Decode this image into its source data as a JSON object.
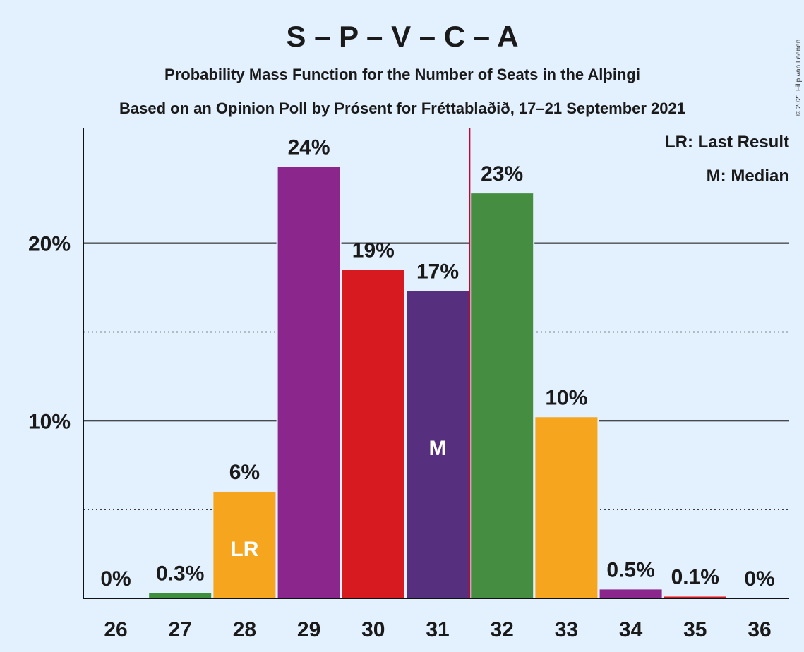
{
  "title": "S – P – V – C – A",
  "subtitle1": "Probability Mass Function for the Number of Seats in the Alþingi",
  "subtitle2": "Based on an Opinion Poll by Prósent for Fréttablaðið, 17–21 September 2021",
  "copyright": "© 2021 Filip van Laenen",
  "legend": {
    "lr": "LR: Last Result",
    "median": "M: Median"
  },
  "colors": {
    "background": "#e3f0fd",
    "last_result_line": "#cc0033"
  },
  "chart_data": {
    "type": "bar",
    "categories": [
      "26",
      "27",
      "28",
      "29",
      "30",
      "31",
      "32",
      "33",
      "34",
      "35",
      "36"
    ],
    "values": [
      0,
      0.3,
      6,
      24.3,
      18.5,
      17.3,
      22.8,
      10.2,
      0.5,
      0.1,
      0
    ],
    "value_labels": [
      "0%",
      "0.3%",
      "6%",
      "24%",
      "19%",
      "17%",
      "23%",
      "10%",
      "0.5%",
      "0.1%",
      "0%"
    ],
    "bar_colors": [
      "#3e8e3e",
      "#3e8e3e",
      "#f5a51e",
      "#8b278c",
      "#d71920",
      "#56307f",
      "#458e41",
      "#f5a51e",
      "#8b278c",
      "#d71920",
      "#56307f"
    ],
    "in_bar_labels": {
      "28": "LR",
      "31": "M"
    },
    "last_result_seats": 31.5,
    "yticks": [
      {
        "value": 10,
        "label": "10%"
      },
      {
        "value": 20,
        "label": "20%"
      }
    ],
    "minor_gridlines": [
      5,
      15
    ],
    "ylim": [
      0,
      26.5
    ],
    "xlabel": "",
    "ylabel": ""
  }
}
